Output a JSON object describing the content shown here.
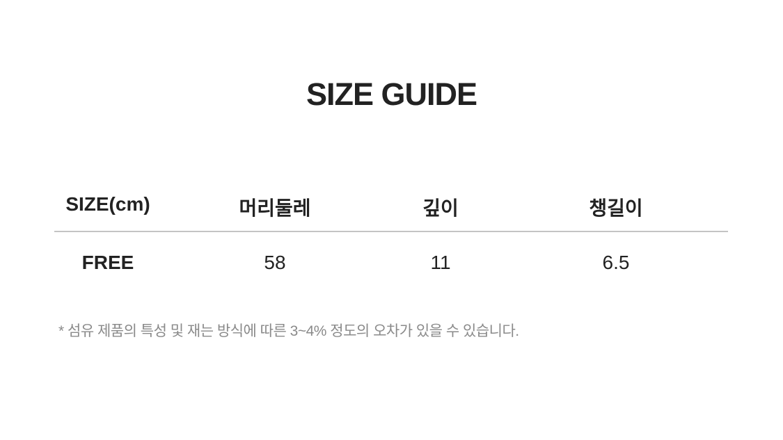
{
  "title": "SIZE GUIDE",
  "table": {
    "headers": [
      "SIZE(cm)",
      "머리둘레",
      "깊이",
      "챙길이"
    ],
    "rows": [
      [
        "FREE",
        "58",
        "11",
        "6.5"
      ]
    ]
  },
  "note": "* 섬유 제품의 특성 및 재는 방식에 따른 3~4% 정도의 오차가 있을 수 있습니다."
}
